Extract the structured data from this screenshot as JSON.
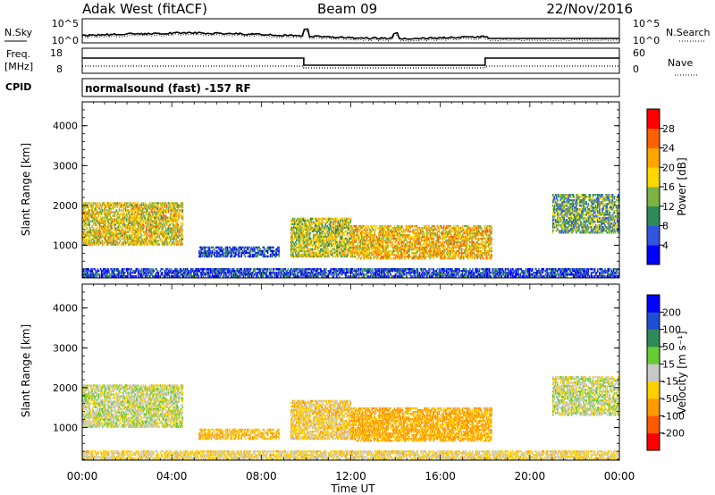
{
  "header": {
    "station": "Adak West (fitACF)",
    "beam": "Beam 09",
    "date": "22/Nov/2016"
  },
  "panels": {
    "nsky": {
      "left_label": "N.Sky",
      "right_label": "N.Search",
      "ticks_left": [
        "10^5",
        "10^0"
      ],
      "ticks_right": [
        "10^5",
        "10^0"
      ]
    },
    "freq": {
      "left_label_1": "Freq.",
      "left_label_2": "[MHz]",
      "right_label": "Nave",
      "ticks_left": [
        "18",
        "8"
      ],
      "ticks_right": [
        "60",
        "0"
      ]
    },
    "cpid": {
      "left_label": "CPID",
      "text": "normalsound (fast) -157 RF"
    }
  },
  "colors": {
    "power_scale": [
      "#0000ff",
      "#3355dd",
      "#2e8b57",
      "#7cb342",
      "#ffd700",
      "#ffa500",
      "#ff6000",
      "#ff0000"
    ],
    "velocity_scale": [
      "#ff0000",
      "#ff5a00",
      "#ff9a00",
      "#ffd000",
      "#c8c8c8",
      "#66cc33",
      "#2e8b57",
      "#1f4fd0",
      "#0000ff"
    ],
    "axis": "#000000"
  },
  "chart_data": [
    {
      "type": "heatmap",
      "quantity": "power",
      "xlabel": "",
      "ylabel": "Slant Range [km]",
      "xlim": [
        "00:00",
        "24:00"
      ],
      "ylim": [
        180,
        4600
      ],
      "yticks": [
        "1000",
        "2000",
        "3000",
        "4000"
      ],
      "colorbar_label": "Power [dB]",
      "colorbar_ticks": [
        "4",
        "8",
        "12",
        "16",
        "20",
        "24",
        "28"
      ],
      "colorbar_range": [
        0,
        32
      ],
      "echo_regions": [
        {
          "t_start": 0.0,
          "t_end": 4.5,
          "range_min": 1000,
          "range_max": 2100,
          "level": 18
        },
        {
          "t_start": 5.2,
          "t_end": 8.8,
          "range_min": 700,
          "range_max": 950,
          "level": 6
        },
        {
          "t_start": 9.3,
          "t_end": 12.0,
          "range_min": 700,
          "range_max": 1700,
          "level": 16
        },
        {
          "t_start": 12.0,
          "t_end": 18.3,
          "range_min": 650,
          "range_max": 1500,
          "level": 20
        },
        {
          "t_start": 21.0,
          "t_end": 24.0,
          "range_min": 1300,
          "range_max": 2300,
          "level": 12
        },
        {
          "t_start": 0.0,
          "t_end": 24.0,
          "range_min": 200,
          "range_max": 420,
          "level": 5
        }
      ]
    },
    {
      "type": "heatmap",
      "quantity": "velocity",
      "xlabel": "Time UT",
      "ylabel": "Slant Range [km]",
      "xlim": [
        "00:00",
        "24:00"
      ],
      "ylim": [
        180,
        4600
      ],
      "xticks": [
        "00:00",
        "04:00",
        "08:00",
        "12:00",
        "16:00",
        "20:00",
        "00:00"
      ],
      "yticks": [
        "1000",
        "2000",
        "3000",
        "4000"
      ],
      "colorbar_label": "Velocity [m s⁻¹]",
      "colorbar_ticks": [
        "-200",
        "-100",
        "-50",
        "-15",
        "15",
        "50",
        "100",
        "200"
      ],
      "echo_regions": [
        {
          "t_start": 0.0,
          "t_end": 4.5,
          "range_min": 1000,
          "range_max": 2100,
          "velocity": 0
        },
        {
          "t_start": 5.2,
          "t_end": 8.8,
          "range_min": 700,
          "range_max": 950,
          "velocity": -40
        },
        {
          "t_start": 9.3,
          "t_end": 12.0,
          "range_min": 700,
          "range_max": 1700,
          "velocity": -30
        },
        {
          "t_start": 12.0,
          "t_end": 18.3,
          "range_min": 650,
          "range_max": 1500,
          "velocity": -60
        },
        {
          "t_start": 21.0,
          "t_end": 24.0,
          "range_min": 1300,
          "range_max": 2300,
          "velocity": 0
        },
        {
          "t_start": 0.0,
          "t_end": 24.0,
          "range_min": 200,
          "range_max": 420,
          "velocity": -20
        }
      ]
    }
  ]
}
